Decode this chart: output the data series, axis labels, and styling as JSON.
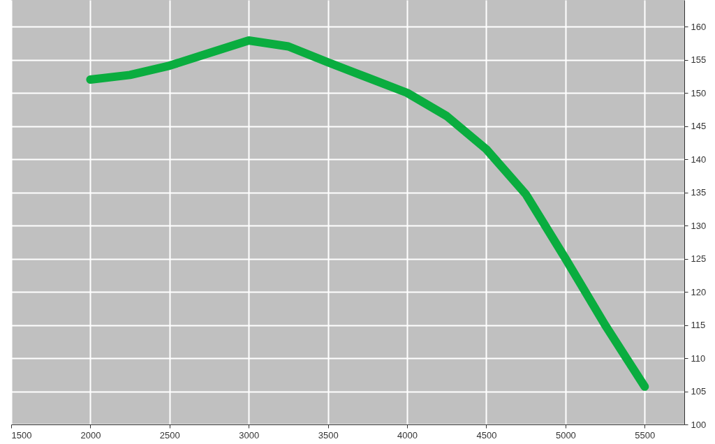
{
  "chart_data": {
    "type": "line",
    "x": [
      2000,
      2250,
      2500,
      2750,
      3000,
      3250,
      3500,
      3750,
      4000,
      4250,
      4500,
      4750,
      5000,
      5250,
      5500
    ],
    "series": [
      {
        "color": "#0aad3f",
        "values": [
          152,
          152.7,
          154.1,
          156,
          157.9,
          157,
          154.6,
          152.3,
          150,
          146.5,
          141.5,
          134.7,
          125,
          115,
          105.7
        ]
      }
    ],
    "xlim": [
      1500,
      5750
    ],
    "xticks": [
      1500,
      2000,
      2500,
      3000,
      3500,
      4000,
      4500,
      5000,
      5500
    ],
    "ylim": [
      100,
      164
    ],
    "yticks": [
      100,
      105,
      110,
      115,
      120,
      125,
      130,
      135,
      140,
      145,
      150,
      155,
      160
    ],
    "grid": true,
    "marker": "none",
    "line_style": "solid"
  }
}
